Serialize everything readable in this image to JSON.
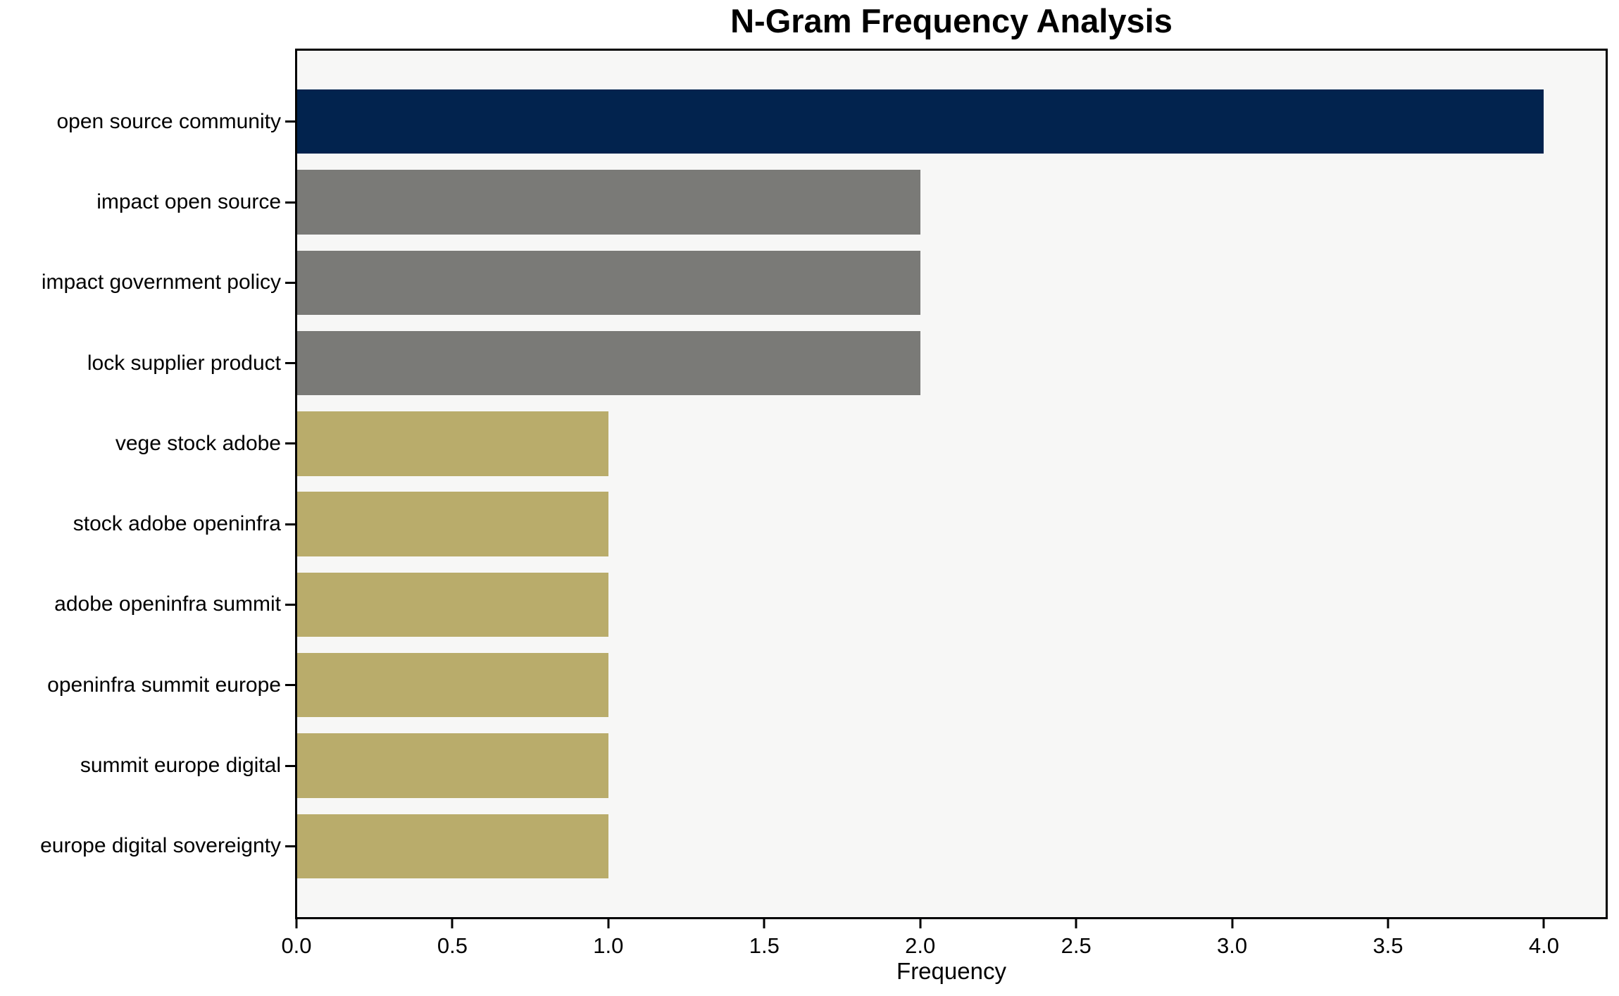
{
  "chart_data": {
    "type": "bar",
    "orientation": "horizontal",
    "title": "N-Gram Frequency Analysis",
    "xlabel": "Frequency",
    "ylabel": "",
    "categories": [
      "open source community",
      "impact open source",
      "impact government policy",
      "lock supplier product",
      "vege stock adobe",
      "stock adobe openinfra",
      "adobe openinfra summit",
      "openinfra summit europe",
      "summit europe digital",
      "europe digital sovereignty"
    ],
    "values": [
      4,
      2,
      2,
      2,
      1,
      1,
      1,
      1,
      1,
      1
    ],
    "bar_colors": [
      "#02234e",
      "#7a7a77",
      "#7a7a77",
      "#7a7a77",
      "#b9ac6b",
      "#b9ac6b",
      "#b9ac6b",
      "#b9ac6b",
      "#b9ac6b",
      "#b9ac6b"
    ],
    "xlim": [
      0,
      4.2
    ],
    "ylim": [
      -0.89,
      9.89
    ],
    "bar_height": 0.8,
    "xticks": [
      0.0,
      0.5,
      1.0,
      1.5,
      2.0,
      2.5,
      3.0,
      3.5,
      4.0
    ],
    "xtick_labels": [
      "0.0",
      "0.5",
      "1.0",
      "1.5",
      "2.0",
      "2.5",
      "3.0",
      "3.5",
      "4.0"
    ],
    "grid": false,
    "legend": null,
    "plot_bg": "#f7f7f6",
    "figure_bg": "#ffffff",
    "spine_color": "#000000",
    "text_color": "#000000"
  }
}
